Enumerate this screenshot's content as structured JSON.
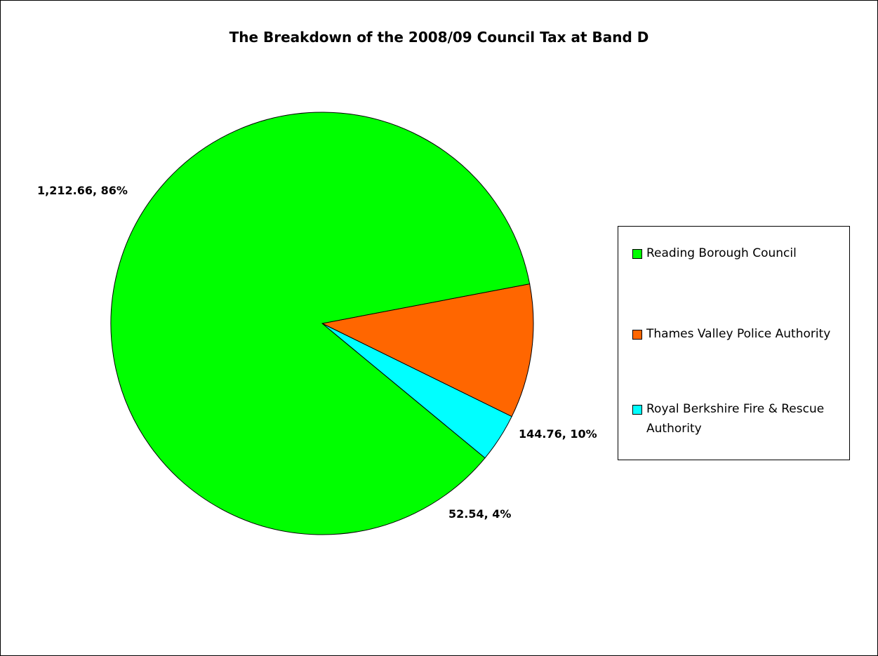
{
  "chart_data": {
    "type": "pie",
    "title": "The Breakdown of the 2008/09 Council Tax at Band D",
    "series": [
      {
        "name": "Reading Borough Council",
        "value": 1212.66,
        "label": "1,212.66, 86%",
        "color": "#00ff00"
      },
      {
        "name": "Thames Valley Police Authority",
        "value": 144.76,
        "label": "144.76, 10%",
        "color": "#ff6600"
      },
      {
        "name": "Royal Berkshire Fire & Rescue Authority",
        "value": 52.54,
        "label": "52.54, 4%",
        "color": "#00ffff"
      }
    ],
    "legend": "right"
  }
}
